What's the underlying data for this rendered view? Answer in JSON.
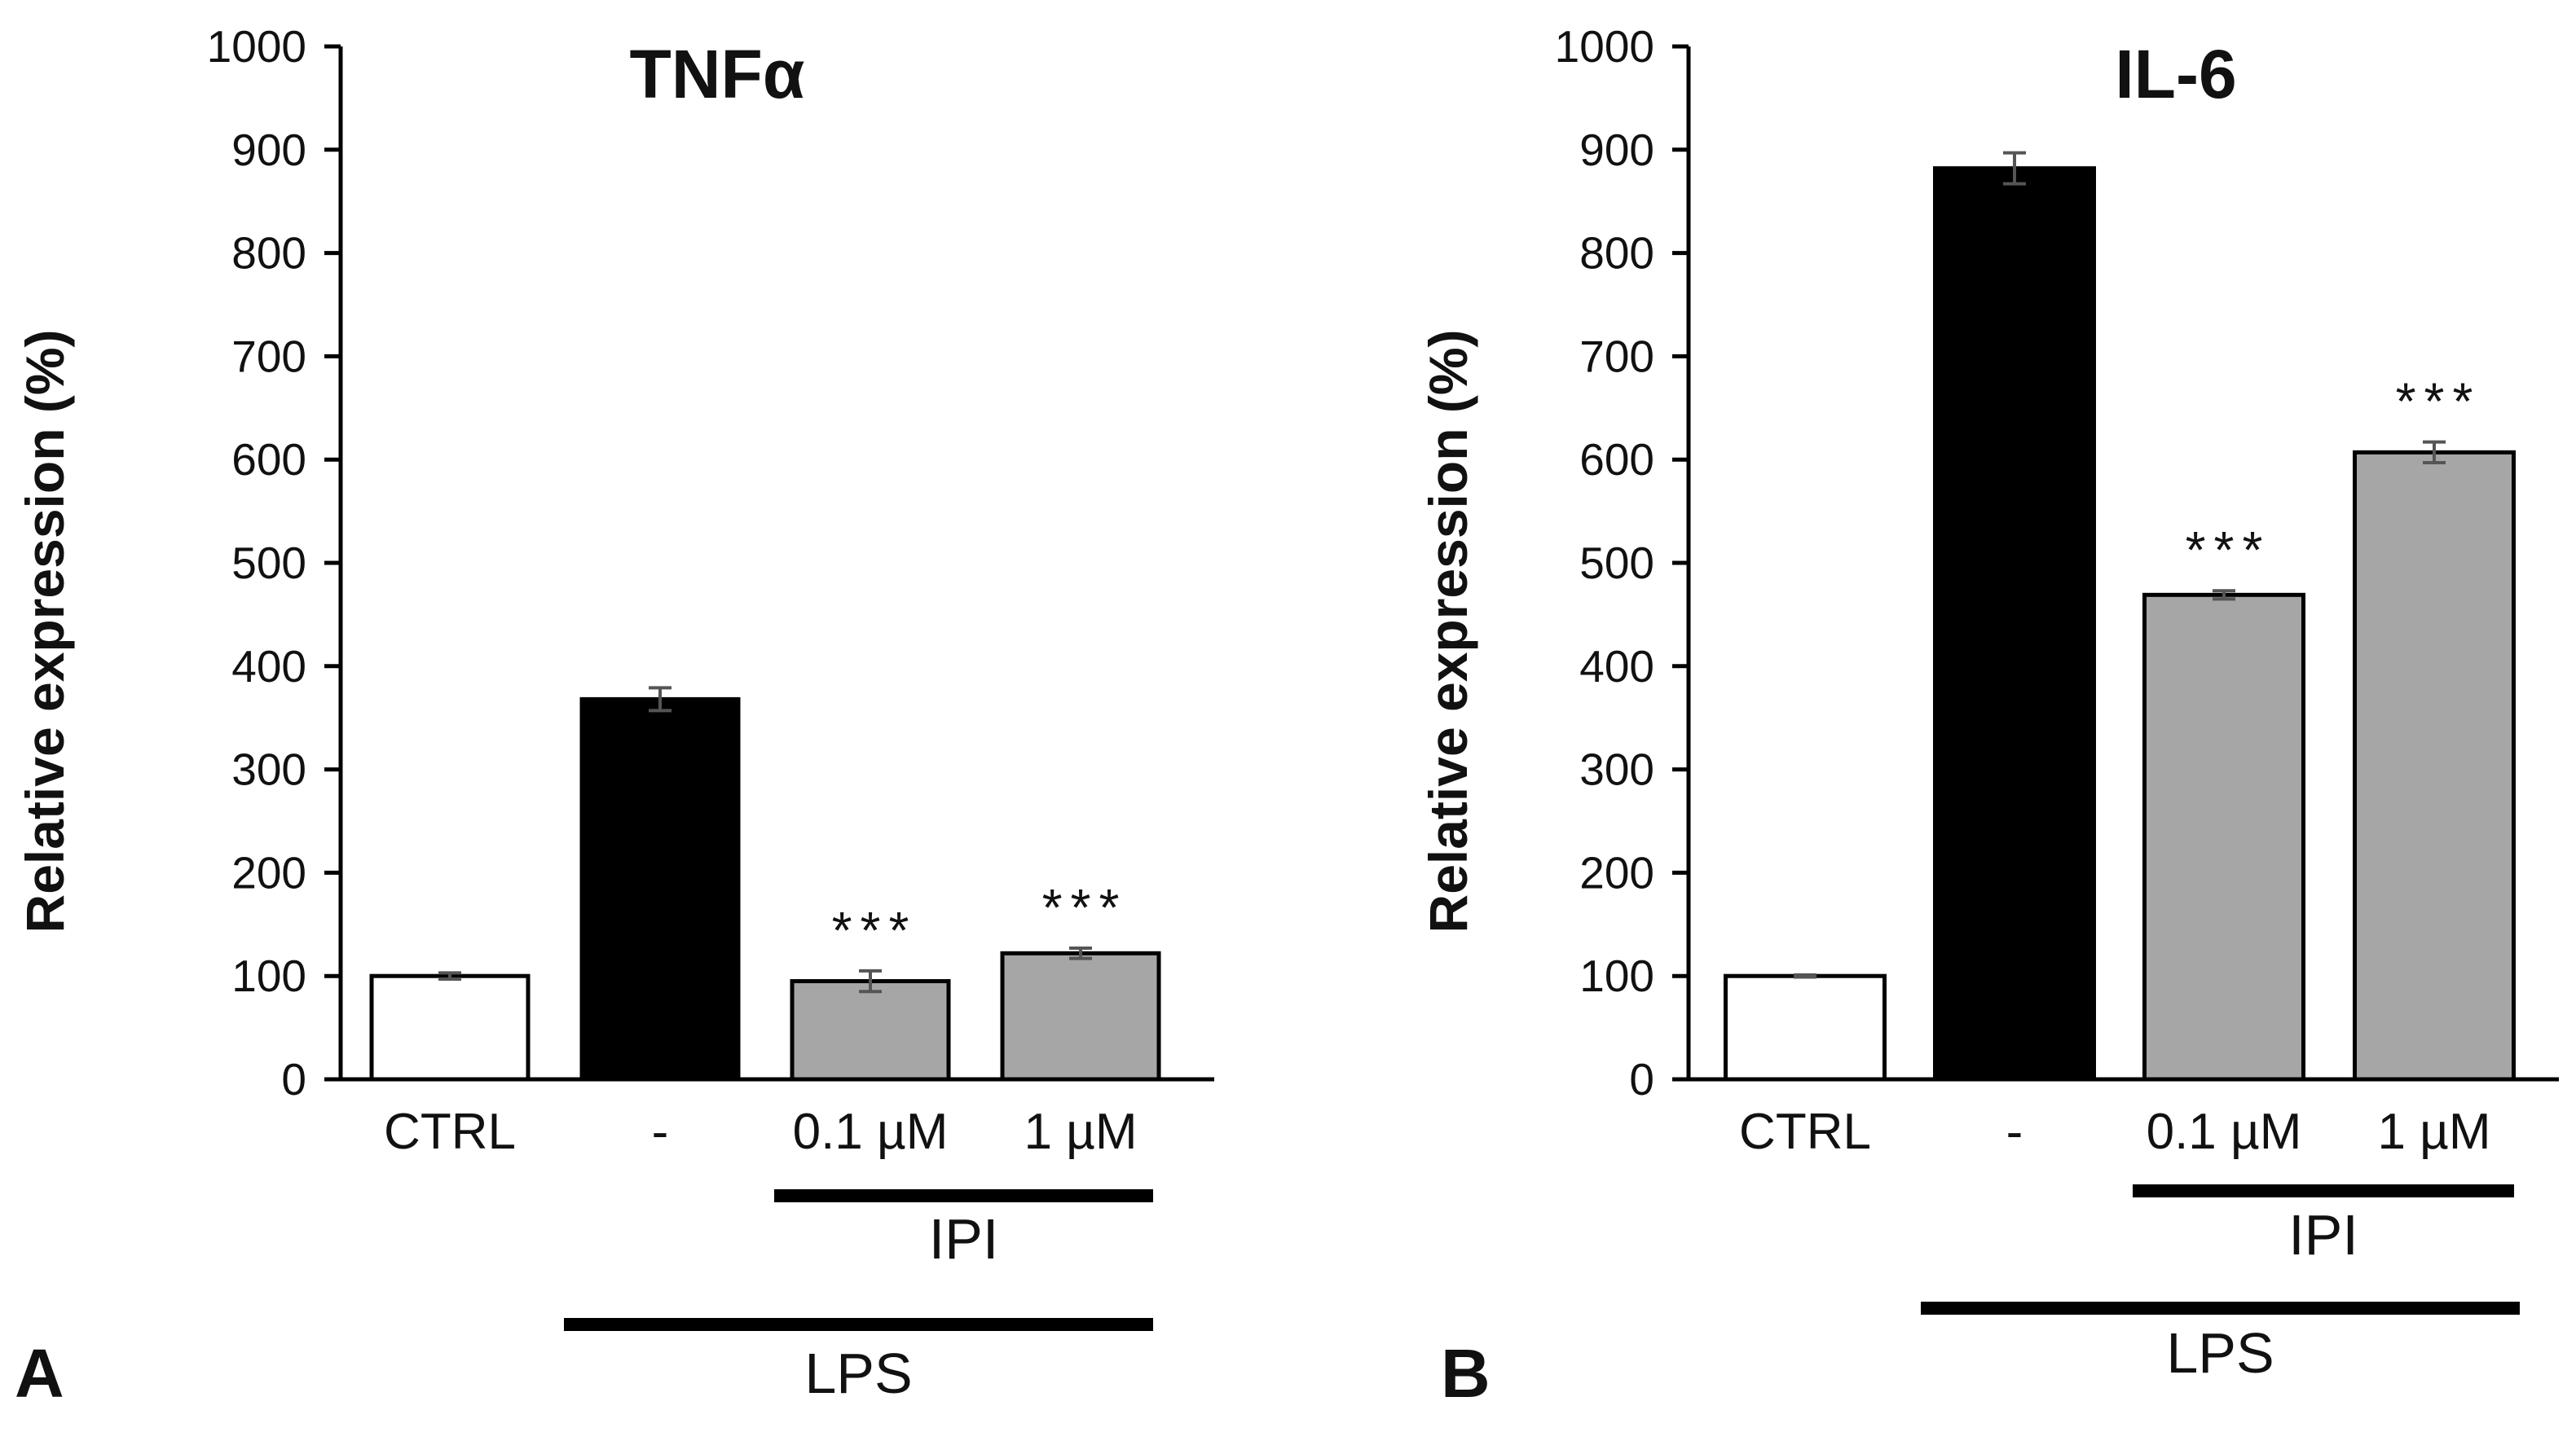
{
  "chart_data": [
    {
      "type": "bar",
      "panel": "A",
      "title": "TNFα",
      "ylabel": "Relative expression (%)",
      "xlabel": "",
      "ylim": [
        0,
        1000
      ],
      "yticks": [
        0,
        100,
        200,
        300,
        400,
        500,
        600,
        700,
        800,
        900,
        1000
      ],
      "categories": [
        "CTRL",
        "-",
        "0.1 µM",
        "1 µM"
      ],
      "values": [
        100,
        368,
        95,
        122
      ],
      "errors": [
        3,
        11,
        10,
        5
      ],
      "bar_colors": [
        "#ffffff",
        "#000000",
        "#a6a6a6",
        "#a6a6a6"
      ],
      "significance": [
        "",
        "",
        "***",
        "***"
      ],
      "groups": [
        {
          "label": "IPI",
          "from": 2,
          "to": 3
        },
        {
          "label": "LPS",
          "from": 1,
          "to": 3
        }
      ]
    },
    {
      "type": "bar",
      "panel": "B",
      "title": "IL-6",
      "ylabel": "Relative expression (%)",
      "xlabel": "",
      "ylim": [
        0,
        1000
      ],
      "yticks": [
        0,
        100,
        200,
        300,
        400,
        500,
        600,
        700,
        800,
        900,
        1000
      ],
      "categories": [
        "CTRL",
        "-",
        "0.1 µM",
        "1 µM"
      ],
      "values": [
        100,
        882,
        469,
        607
      ],
      "errors": [
        1,
        15,
        4,
        10
      ],
      "bar_colors": [
        "#ffffff",
        "#000000",
        "#a6a6a6",
        "#a6a6a6"
      ],
      "significance": [
        "",
        "",
        "***",
        "***"
      ],
      "groups": [
        {
          "label": "IPI",
          "from": 2,
          "to": 3
        },
        {
          "label": "LPS",
          "from": 1,
          "to": 3
        }
      ]
    }
  ]
}
